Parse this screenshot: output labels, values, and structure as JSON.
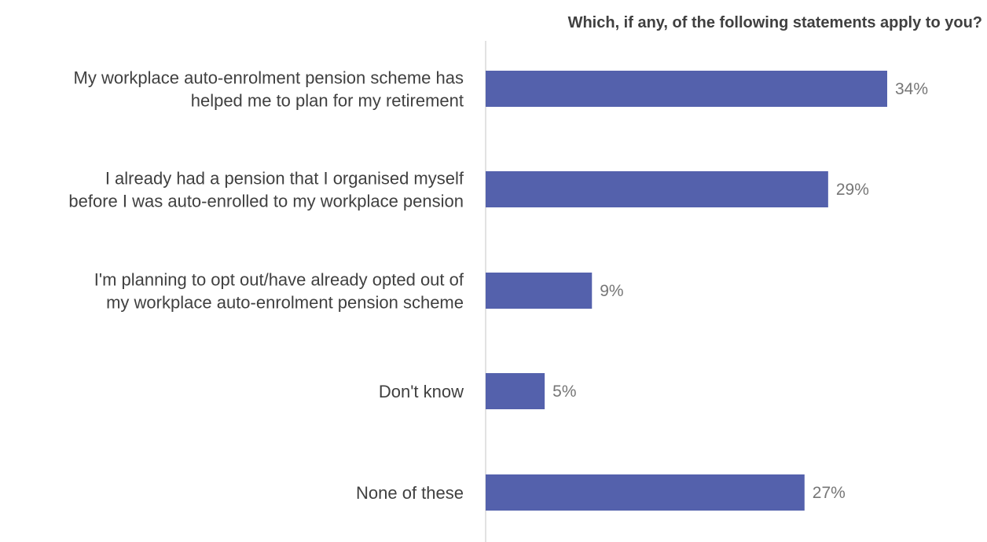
{
  "chart_data": {
    "type": "bar",
    "orientation": "horizontal",
    "title": "Which, if any, of the following statements apply to you?",
    "categories": [
      [
        "My workplace auto-enrolment pension scheme has",
        "helped me to plan for my retirement"
      ],
      [
        "I already had a pension that I organised myself",
        "before I was auto-enrolled to my workplace pension"
      ],
      [
        "I'm planning to opt out/have already opted out of",
        "my workplace auto-enrolment pension scheme"
      ],
      [
        "Don't know"
      ],
      [
        "None of these"
      ]
    ],
    "values": [
      34,
      29,
      9,
      5,
      27
    ],
    "value_labels": [
      "34%",
      "29%",
      "9%",
      "5%",
      "27%"
    ],
    "unit": "%",
    "xlim": [
      0,
      34
    ],
    "bar_color": "#5461AC",
    "axis_color": "#D9D9D9",
    "grid": false,
    "legend": "none"
  }
}
